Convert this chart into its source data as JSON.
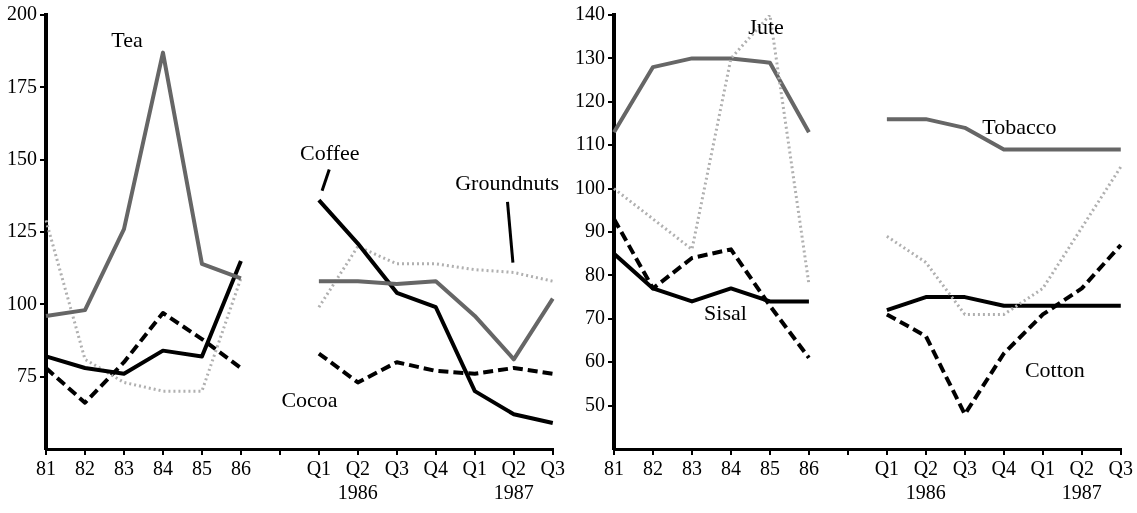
{
  "chart_data": [
    {
      "type": "line",
      "categories": [
        "81",
        "82",
        "83",
        "84",
        "85",
        "86",
        null,
        "Q1",
        "Q2\n1986",
        "Q3",
        "Q4",
        "Q1",
        "Q2\n1987",
        "Q3"
      ],
      "ylim": [
        50,
        200
      ],
      "yticks": [
        75,
        100,
        125,
        150,
        175,
        200
      ],
      "grid": false,
      "legend": false,
      "marker": "none",
      "series": [
        {
          "name": "Tea",
          "color": "#666666",
          "line_style": "solid",
          "values": [
            96,
            98,
            126,
            187,
            114,
            109,
            null,
            108,
            108,
            107,
            108,
            96,
            81,
            102
          ]
        },
        {
          "name": "Coffee",
          "color": "#000000",
          "line_style": "solid",
          "values": [
            82,
            78,
            76,
            84,
            82,
            115,
            null,
            136,
            121,
            104,
            99,
            70,
            62,
            59
          ]
        },
        {
          "name": "Groundnuts",
          "color": "#b0b0b0",
          "line_style": "dotted",
          "values": [
            129,
            81,
            73,
            70,
            70,
            109,
            null,
            99,
            120,
            114,
            114,
            112,
            111,
            108
          ]
        },
        {
          "name": "Cocoa",
          "color": "#000000",
          "line_style": "dashed",
          "values": [
            78,
            66,
            80,
            97,
            88,
            78,
            null,
            83,
            73,
            80,
            77,
            76,
            78,
            76
          ]
        }
      ]
    },
    {
      "type": "line",
      "categories": [
        "81",
        "82",
        "83",
        "84",
        "85",
        "86",
        null,
        "Q1",
        "Q2\n1986",
        "Q3",
        "Q4",
        "Q1",
        "Q2\n1987",
        "Q3"
      ],
      "ylim": [
        40,
        140
      ],
      "yticks": [
        50,
        60,
        70,
        80,
        90,
        100,
        110,
        120,
        130,
        140
      ],
      "grid": false,
      "legend": false,
      "marker": "none",
      "series": [
        {
          "name": "Jute",
          "color": "#b0b0b0",
          "line_style": "dotted",
          "values": [
            100,
            93,
            86,
            130,
            140,
            78,
            null,
            89,
            83,
            71,
            71,
            77,
            91,
            105
          ]
        },
        {
          "name": "Tobacco",
          "color": "#666666",
          "line_style": "solid",
          "values": [
            113,
            128,
            130,
            130,
            129,
            113,
            null,
            116,
            116,
            114,
            109,
            109,
            109,
            109
          ]
        },
        {
          "name": "Sisal",
          "color": "#000000",
          "line_style": "solid",
          "values": [
            85,
            77,
            74,
            77,
            74,
            74,
            null,
            72,
            75,
            75,
            73,
            73,
            73,
            73
          ]
        },
        {
          "name": "Cotton",
          "color": "#000000",
          "line_style": "dashed",
          "values": [
            93,
            77,
            84,
            86,
            73,
            61,
            null,
            71,
            66,
            48,
            62,
            71,
            77,
            87
          ]
        }
      ]
    }
  ]
}
